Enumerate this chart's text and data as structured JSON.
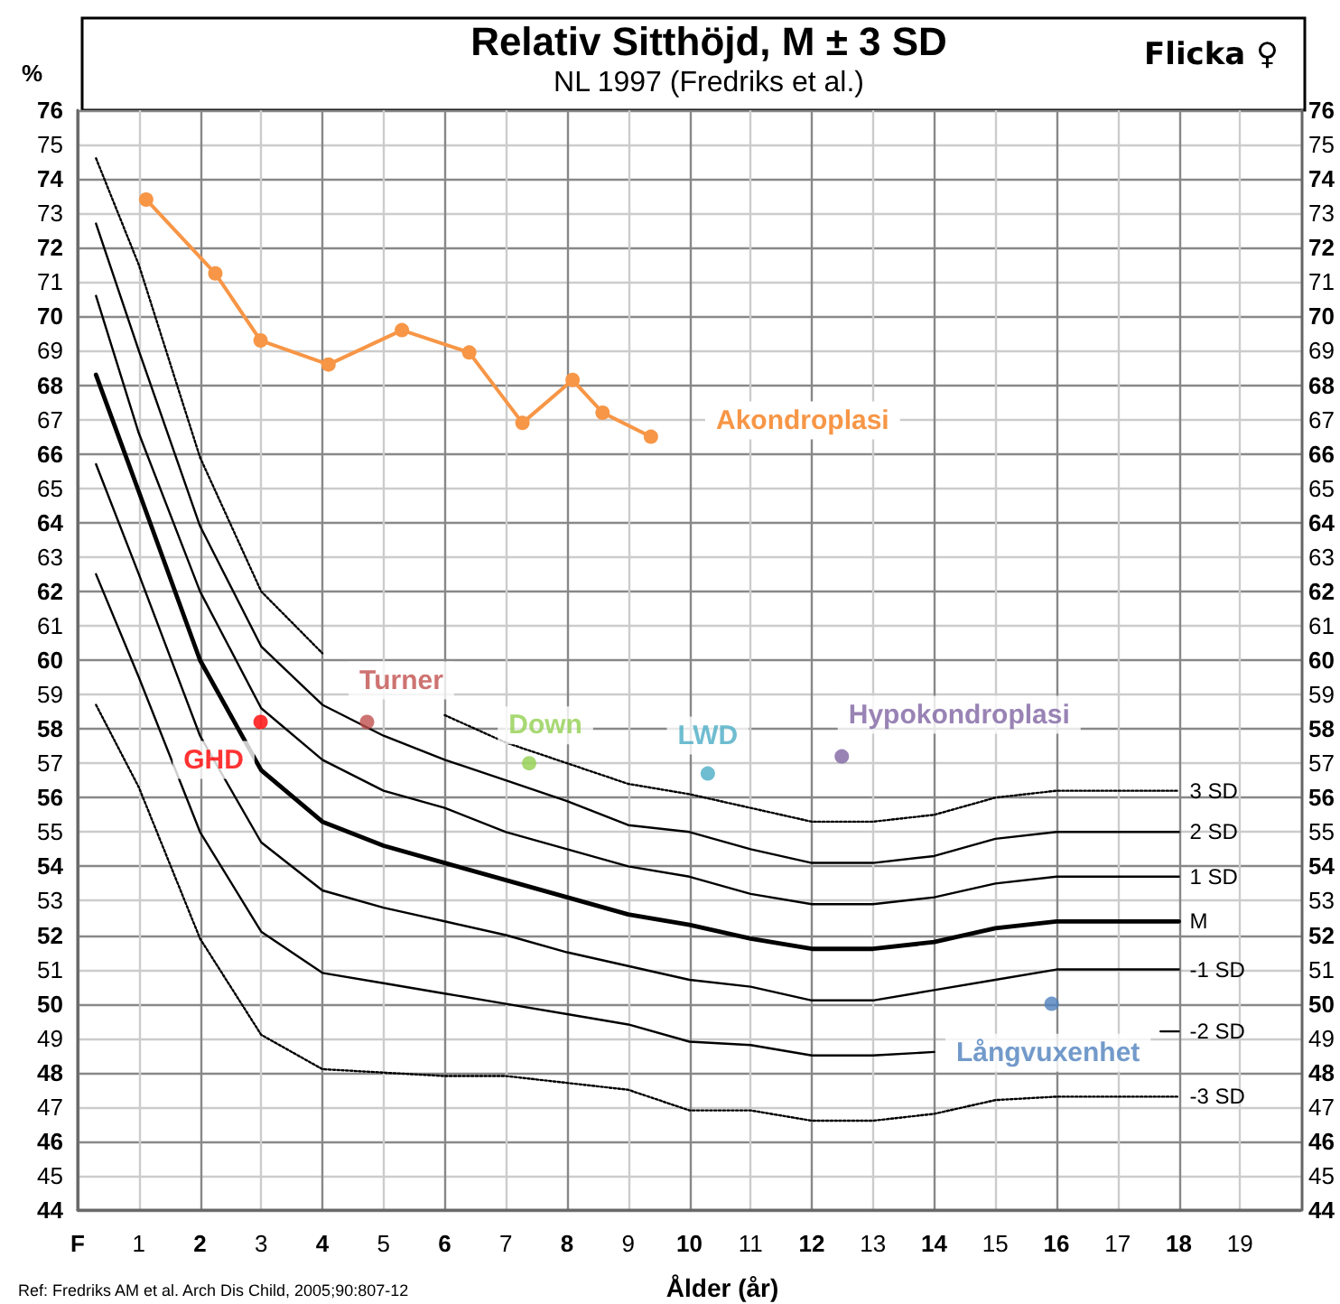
{
  "chart_data": {
    "type": "line",
    "title": "Relativ Sitthöjd, M ± 3 SD",
    "subtitle": "NL 1997 (Fredriks et al.)",
    "xlabel": "Ålder (år)",
    "ylabel": "%",
    "annotations": [
      "Flicka ♀",
      "Ref: Fredriks AM et al. Arch Dis Child, 2005;90:807-12"
    ],
    "xlim": [
      0,
      20
    ],
    "xticks": [
      {
        "value": 0,
        "label": "F"
      },
      1,
      2,
      3,
      4,
      5,
      6,
      7,
      8,
      9,
      10,
      11,
      12,
      13,
      14,
      15,
      16,
      17,
      18,
      19
    ],
    "ylim": [
      44,
      76
    ],
    "yticks": [
      44,
      45,
      46,
      47,
      48,
      49,
      50,
      51,
      52,
      53,
      54,
      55,
      56,
      57,
      58,
      59,
      60,
      61,
      62,
      63,
      64,
      65,
      66,
      67,
      68,
      69,
      70,
      71,
      72,
      73,
      74,
      75,
      76
    ],
    "y2lim": [
      44,
      76
    ],
    "y2ticks": [
      44,
      45,
      46,
      47,
      48,
      49,
      50,
      51,
      52,
      53,
      54,
      55,
      56,
      57,
      58,
      59,
      60,
      61,
      62,
      63,
      64,
      65,
      66,
      67,
      68,
      69,
      70,
      71,
      72,
      73,
      74,
      75,
      76
    ],
    "grid": true,
    "series": [
      {
        "name": "3 SD",
        "color": "#000000",
        "marker": "none",
        "line_style": "dotted",
        "x": [
          0.3,
          1,
          2,
          3,
          4,
          5,
          6,
          7,
          8,
          9,
          10,
          11,
          12,
          13,
          14,
          15,
          16,
          17,
          18
        ],
        "values": [
          74.6,
          71.5,
          65.9,
          62.0,
          60.2,
          null,
          58.4,
          57.6,
          57.0,
          56.4,
          56.1,
          55.7,
          55.3,
          55.3,
          55.5,
          56.0,
          56.2,
          56.2,
          56.2
        ]
      },
      {
        "name": "2 SD",
        "color": "#000000",
        "marker": "none",
        "line_style": "solid",
        "x": [
          0.3,
          1,
          2,
          3,
          4,
          5,
          6,
          7,
          8,
          9,
          10,
          11,
          12,
          13,
          14,
          15,
          16,
          17,
          18
        ],
        "values": [
          72.7,
          69.0,
          63.9,
          60.4,
          58.7,
          57.8,
          57.1,
          56.5,
          55.9,
          55.2,
          55.0,
          54.5,
          54.1,
          54.1,
          54.3,
          54.8,
          55.0,
          55.0,
          55.0
        ]
      },
      {
        "name": "1 SD",
        "color": "#000000",
        "marker": "none",
        "line_style": "solid",
        "x": [
          0.3,
          1,
          2,
          3,
          4,
          5,
          6,
          7,
          8,
          9,
          10,
          11,
          12,
          13,
          14,
          15,
          16,
          17,
          18
        ],
        "values": [
          70.6,
          66.6,
          62.0,
          58.6,
          57.1,
          56.2,
          55.7,
          55.0,
          54.5,
          54.0,
          53.7,
          53.2,
          52.9,
          52.9,
          53.1,
          53.5,
          53.7,
          53.7,
          53.7
        ]
      },
      {
        "name": "M",
        "color": "#000000",
        "marker": "none",
        "line_style": "solid",
        "x": [
          0.3,
          1,
          2,
          3,
          4,
          5,
          6,
          7,
          8,
          9,
          10,
          11,
          12,
          13,
          14,
          15,
          16,
          17,
          18
        ],
        "values": [
          68.3,
          64.9,
          60.0,
          56.8,
          55.3,
          54.6,
          54.1,
          53.6,
          53.1,
          52.6,
          52.3,
          51.9,
          51.6,
          51.6,
          51.8,
          52.2,
          52.4,
          52.4,
          52.4
        ]
      },
      {
        "name": "-1 SD",
        "color": "#000000",
        "marker": "none",
        "line_style": "solid",
        "x": [
          0.3,
          1,
          2,
          3,
          4,
          5,
          6,
          7,
          8,
          9,
          10,
          11,
          12,
          13,
          14,
          15,
          16,
          17,
          18
        ],
        "values": [
          65.7,
          62.5,
          57.8,
          54.7,
          53.3,
          52.8,
          52.4,
          52.0,
          51.5,
          51.1,
          50.7,
          50.5,
          50.1,
          50.1,
          50.4,
          50.7,
          51.0,
          51.0,
          51.0
        ]
      },
      {
        "name": "-2 SD",
        "color": "#000000",
        "marker": "none",
        "line_style": "solid",
        "x": [
          0.3,
          1,
          2,
          3,
          4,
          5,
          6,
          7,
          8,
          9,
          10,
          11,
          12,
          13,
          14,
          15,
          17.7,
          18
        ],
        "values": [
          62.5,
          59.5,
          55.0,
          52.1,
          50.9,
          50.6,
          50.3,
          50.0,
          49.7,
          49.4,
          48.9,
          48.8,
          48.5,
          48.5,
          48.6,
          null,
          49.2,
          49.2
        ]
      },
      {
        "name": "-3 SD",
        "color": "#000000",
        "marker": "none",
        "line_style": "dotted",
        "x": [
          0.3,
          1,
          2,
          3,
          4,
          6,
          7,
          8,
          9,
          10,
          11,
          12,
          13,
          14,
          15,
          16,
          17,
          18
        ],
        "values": [
          58.7,
          56.3,
          51.9,
          49.1,
          48.1,
          47.9,
          47.9,
          47.7,
          47.5,
          46.9,
          46.9,
          46.6,
          46.6,
          46.8,
          47.2,
          47.3,
          47.3,
          47.3
        ]
      },
      {
        "name": "Akondroplasi",
        "color": "#f79646",
        "marker": "circle",
        "line_style": "solid",
        "x": [
          1.12,
          2.25,
          2.99,
          4.1,
          5.3,
          6.4,
          7.27,
          8.09,
          8.58,
          9.37
        ],
        "values": [
          73.4,
          71.25,
          69.3,
          68.6,
          69.6,
          68.95,
          66.9,
          68.15,
          67.2,
          66.5
        ]
      },
      {
        "name": "GHD",
        "type": "scatter",
        "color": "#ff0000",
        "marker": "circle",
        "x": [
          2.99
        ],
        "values": [
          58.2
        ]
      },
      {
        "name": "Turner",
        "type": "scatter",
        "color": "#c0504d",
        "marker": "circle",
        "x": [
          4.73
        ],
        "values": [
          58.2
        ]
      },
      {
        "name": "Down",
        "type": "scatter",
        "color": "#92d050",
        "marker": "circle",
        "x": [
          7.38
        ],
        "values": [
          57.0
        ]
      },
      {
        "name": "LWD",
        "type": "scatter",
        "color": "#4bacc6",
        "marker": "circle",
        "x": [
          10.3
        ],
        "values": [
          56.7
        ]
      },
      {
        "name": "Hypokondroplasi",
        "type": "scatter",
        "color": "#8064a2",
        "marker": "circle",
        "x": [
          12.49
        ],
        "values": [
          57.2
        ]
      },
      {
        "name": "Långvuxenhet",
        "type": "scatter",
        "color": "#4f81bd",
        "marker": "circle",
        "x": [
          15.92
        ],
        "values": [
          50.0
        ]
      }
    ]
  }
}
